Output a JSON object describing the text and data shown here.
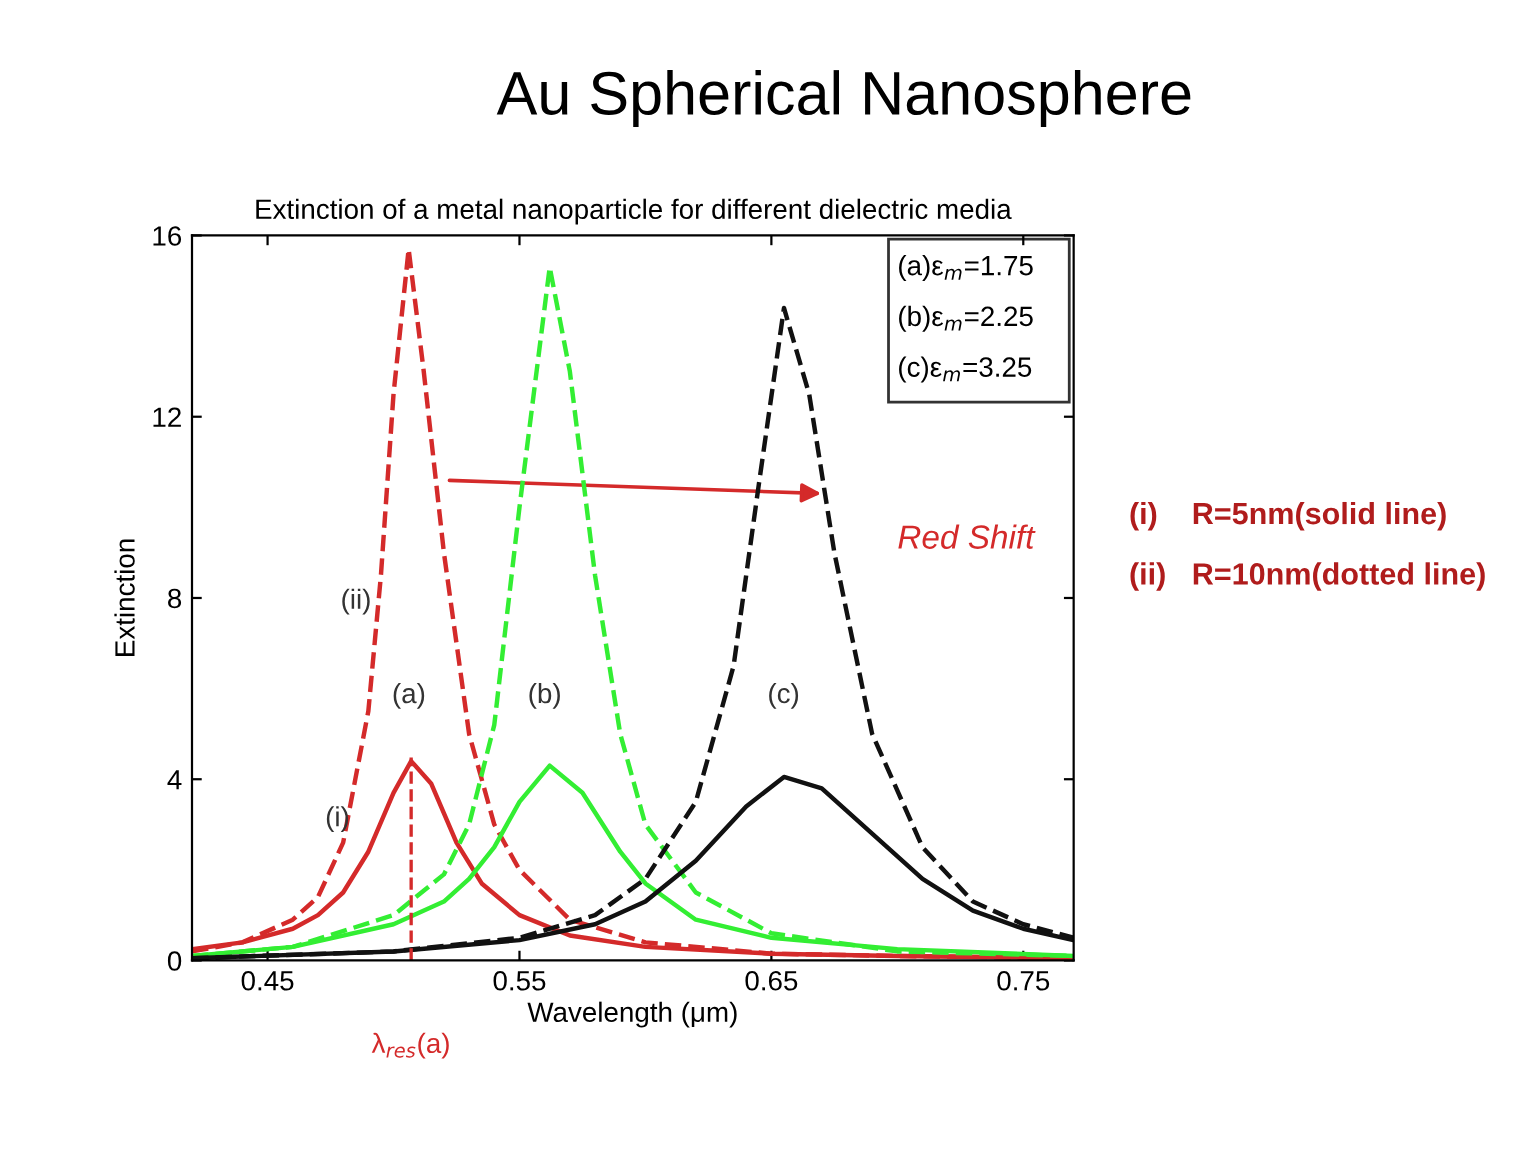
{
  "chart_data": {
    "type": "line",
    "title": "Au Spherical Nanosphere",
    "subtitle": "Extinction of a metal nanoparticle for different dielectric media",
    "xlabel": "Wavelength (μm)",
    "ylabel": "Extinction",
    "xlim": [
      0.42,
      0.77
    ],
    "xticks": [
      0.45,
      0.55,
      0.65,
      0.75
    ],
    "ylim": [
      0,
      16
    ],
    "yticks": [
      0,
      4,
      8,
      12,
      16
    ],
    "grid": false,
    "legend": false,
    "marker": "none",
    "series": [
      {
        "color": "#d42a2a",
        "line_style": "solid",
        "x": [
          0.42,
          0.44,
          0.46,
          0.47,
          0.48,
          0.49,
          0.5,
          0.507,
          0.515,
          0.525,
          0.535,
          0.55,
          0.57,
          0.6,
          0.65,
          0.7,
          0.77
        ],
        "values": [
          0.25,
          0.4,
          0.7,
          1.0,
          1.5,
          2.4,
          3.7,
          4.4,
          3.9,
          2.6,
          1.7,
          1.0,
          0.55,
          0.3,
          0.15,
          0.1,
          0.05
        ]
      },
      {
        "color": "#d42a2a",
        "line_style": "dashed",
        "x": [
          0.42,
          0.44,
          0.46,
          0.47,
          0.48,
          0.49,
          0.495,
          0.5,
          0.506,
          0.512,
          0.52,
          0.53,
          0.54,
          0.55,
          0.57,
          0.6,
          0.65,
          0.7,
          0.77
        ],
        "values": [
          0.2,
          0.4,
          0.9,
          1.4,
          2.6,
          5.5,
          8.5,
          12.5,
          15.7,
          13,
          9,
          5,
          3,
          2,
          0.9,
          0.4,
          0.15,
          0.1,
          0.05
        ]
      },
      {
        "color": "#33ee33",
        "line_style": "solid",
        "x": [
          0.42,
          0.46,
          0.5,
          0.52,
          0.53,
          0.54,
          0.55,
          0.562,
          0.575,
          0.59,
          0.6,
          0.62,
          0.65,
          0.7,
          0.77
        ],
        "values": [
          0.1,
          0.3,
          0.8,
          1.3,
          1.8,
          2.5,
          3.5,
          4.3,
          3.7,
          2.4,
          1.7,
          0.9,
          0.5,
          0.25,
          0.1
        ]
      },
      {
        "color": "#33ee33",
        "line_style": "dashed",
        "x": [
          0.42,
          0.46,
          0.5,
          0.52,
          0.53,
          0.54,
          0.55,
          0.562,
          0.57,
          0.58,
          0.59,
          0.6,
          0.62,
          0.65,
          0.7,
          0.77
        ],
        "values": [
          0.1,
          0.3,
          1.0,
          1.9,
          3,
          5.2,
          10,
          15.3,
          13,
          8.5,
          5,
          3,
          1.5,
          0.6,
          0.2,
          0.1
        ]
      },
      {
        "color": "#111111",
        "line_style": "solid",
        "x": [
          0.42,
          0.5,
          0.55,
          0.58,
          0.6,
          0.62,
          0.64,
          0.655,
          0.67,
          0.69,
          0.71,
          0.73,
          0.75,
          0.77
        ],
        "values": [
          0.05,
          0.2,
          0.45,
          0.8,
          1.3,
          2.2,
          3.4,
          4.05,
          3.8,
          2.8,
          1.8,
          1.1,
          0.7,
          0.45
        ]
      },
      {
        "color": "#111111",
        "line_style": "dashed",
        "x": [
          0.42,
          0.5,
          0.55,
          0.58,
          0.6,
          0.62,
          0.635,
          0.645,
          0.655,
          0.665,
          0.675,
          0.69,
          0.71,
          0.73,
          0.75,
          0.77
        ],
        "values": [
          0.05,
          0.2,
          0.5,
          1.0,
          1.8,
          3.5,
          6.5,
          10.5,
          14.4,
          12.5,
          9,
          5,
          2.5,
          1.3,
          0.8,
          0.5
        ]
      }
    ],
    "ref_lines": [
      {
        "axis": "x",
        "value": 0.507,
        "label": "λ$_{res}$(a)",
        "color": "#d42a2a",
        "line_style": "dashed"
      }
    ],
    "annotations": [
      "(a)",
      "(b)",
      "(c)",
      "(ii)",
      "(i)",
      "(a)ε$_{m}$=1.75",
      "(b)ε$_{m}$=2.25",
      "(c)ε$_{m}$=3.25",
      "Red Shift",
      "(i)    R=5nm(solid line)",
      "(ii)   R=10nm(dotted line)"
    ]
  }
}
